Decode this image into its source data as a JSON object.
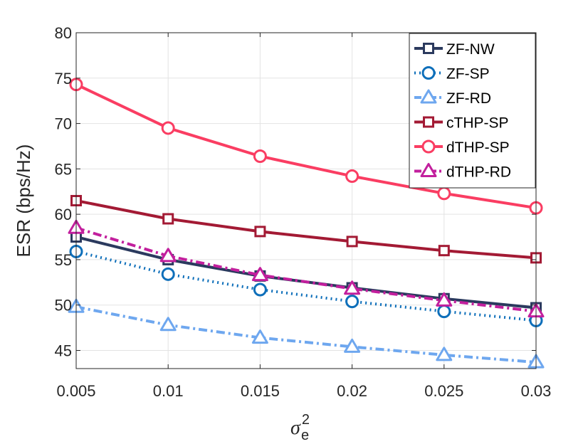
{
  "chart_data": {
    "type": "line",
    "title": "",
    "xlabel": "σ",
    "xlabel_superscript": "2",
    "xlabel_subscript": "e",
    "ylabel": "ESR (bps/Hz)",
    "x": [
      0.005,
      0.01,
      0.015,
      0.02,
      0.025,
      0.03
    ],
    "xticks": [
      "0.005",
      "0.01",
      "0.015",
      "0.02",
      "0.025",
      "0.03"
    ],
    "yticks": [
      "45",
      "50",
      "55",
      "60",
      "65",
      "70",
      "75",
      "80"
    ],
    "xlim": [
      0.005,
      0.03
    ],
    "ylim": [
      43,
      80
    ],
    "grid": true,
    "legend_position": "top-right",
    "series": [
      {
        "name": "ZF-NW",
        "values": [
          57.5,
          55.0,
          53.2,
          51.9,
          50.7,
          49.7
        ],
        "color": "#2b3a5e",
        "dash": "solid",
        "marker": "square"
      },
      {
        "name": "ZF-SP",
        "values": [
          55.9,
          53.4,
          51.7,
          50.4,
          49.3,
          48.3
        ],
        "color": "#0e6fba",
        "dash": "dotted",
        "marker": "circle"
      },
      {
        "name": "ZF-RD",
        "values": [
          49.8,
          47.8,
          46.4,
          45.4,
          44.5,
          43.7
        ],
        "color": "#6ea7ef",
        "dash": "dashdot",
        "marker": "triangle"
      },
      {
        "name": "cTHP-SP",
        "values": [
          61.5,
          59.5,
          58.1,
          57.0,
          56.0,
          55.2
        ],
        "color": "#a31a34",
        "dash": "solid",
        "marker": "square"
      },
      {
        "name": "dTHP-SP",
        "values": [
          74.3,
          69.5,
          66.4,
          64.2,
          62.3,
          60.7
        ],
        "color": "#fa3d62",
        "dash": "solid",
        "marker": "circle"
      },
      {
        "name": "dTHP-RD",
        "values": [
          58.5,
          55.4,
          53.3,
          51.8,
          50.5,
          49.3
        ],
        "color": "#c21f9d",
        "dash": "dashdot",
        "marker": "triangle"
      }
    ]
  }
}
